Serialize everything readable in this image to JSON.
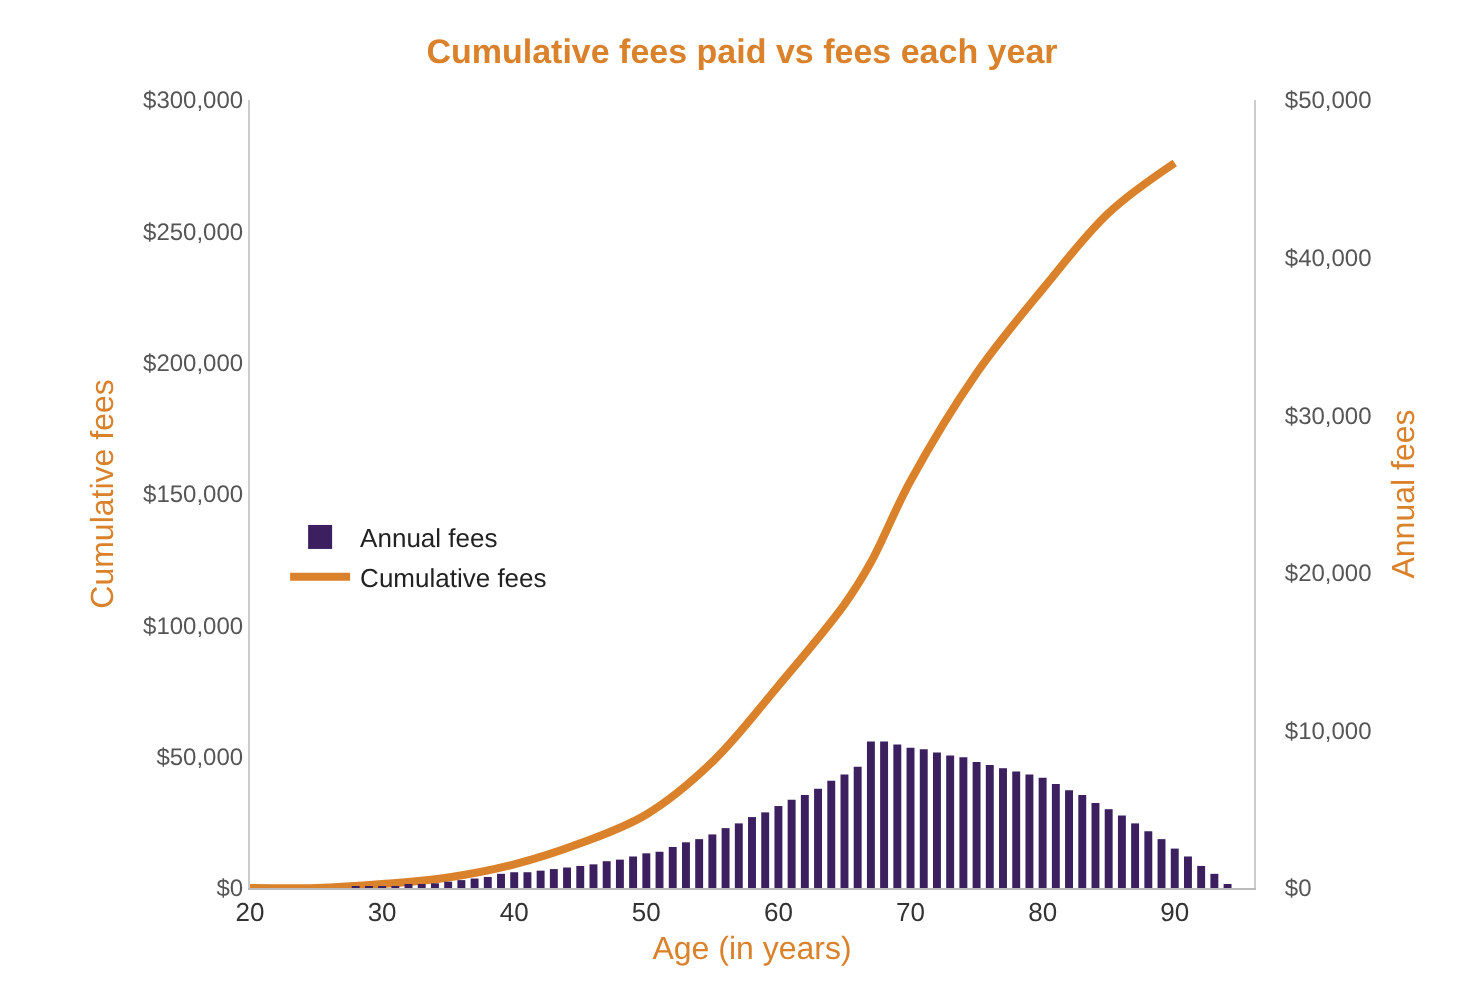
{
  "chart_data": {
    "type": "line",
    "title": "Cumulative fees paid vs fees each year",
    "xlabel": "Age (in years)",
    "ylabel": "Cumulative fees",
    "y2label": "Annual fees",
    "series": [
      {
        "name": "Annual fees",
        "type": "bar",
        "axis": "y2",
        "color": "#3b1f5e",
        "x": [
          28,
          29,
          30,
          31,
          32,
          33,
          34,
          35,
          36,
          37,
          38,
          39,
          40,
          41,
          42,
          43,
          44,
          45,
          46,
          47,
          48,
          49,
          50,
          51,
          52,
          53,
          54,
          55,
          56,
          57,
          58,
          59,
          60,
          61,
          62,
          63,
          64,
          65,
          66,
          67,
          68,
          69,
          70,
          71,
          72,
          73,
          74,
          75,
          76,
          77,
          78,
          79,
          80,
          81,
          82,
          83,
          84,
          85,
          86,
          87,
          88,
          89,
          90,
          91,
          92,
          93,
          94
        ],
        "values": [
          100,
          100,
          100,
          100,
          200,
          200,
          300,
          400,
          500,
          600,
          700,
          900,
          1000,
          1000,
          1100,
          1200,
          1300,
          1400,
          1500,
          1700,
          1800,
          2000,
          2200,
          2300,
          2600,
          2900,
          3100,
          3400,
          3800,
          4100,
          4500,
          4800,
          5200,
          5600,
          5900,
          6300,
          6800,
          7200,
          7700,
          9300,
          9300,
          9100,
          8900,
          8800,
          8600,
          8400,
          8300,
          8000,
          7800,
          7600,
          7400,
          7200,
          7000,
          6600,
          6200,
          5900,
          5400,
          5000,
          4600,
          4100,
          3600,
          3100,
          2500,
          2000,
          1400,
          900,
          200
        ]
      },
      {
        "name": "Cumulative fees",
        "color": "#d9822b",
        "x": [
          20,
          25,
          30,
          35,
          40,
          45,
          50,
          55,
          60,
          65,
          67,
          70,
          75,
          80,
          85,
          90
        ],
        "values": [
          0,
          0,
          1500,
          4000,
          9000,
          17000,
          28000,
          48000,
          77000,
          108000,
          124000,
          155000,
          196000,
          228000,
          257000,
          276000
        ]
      }
    ],
    "xlim": [
      20,
      96
    ],
    "xticks": [
      20,
      30,
      40,
      50,
      60,
      70,
      80,
      90
    ],
    "ylim": [
      0,
      300000
    ],
    "yticks": [
      {
        "value": 0,
        "label": "$0"
      },
      {
        "value": 50000,
        "label": "$50,000"
      },
      {
        "value": 100000,
        "label": "$100,000"
      },
      {
        "value": 150000,
        "label": "$150,000"
      },
      {
        "value": 200000,
        "label": "$200,000"
      },
      {
        "value": 250000,
        "label": "$250,000"
      },
      {
        "value": 300000,
        "label": "$300,000"
      }
    ],
    "y2lim": [
      0,
      50000
    ],
    "y2ticks": [
      {
        "value": 0,
        "label": "$0"
      },
      {
        "value": 10000,
        "label": "$10,000"
      },
      {
        "value": 20000,
        "label": "$20,000"
      },
      {
        "value": 30000,
        "label": "$30,000"
      },
      {
        "value": 40000,
        "label": "$40,000"
      },
      {
        "value": 50000,
        "label": "$50,000"
      }
    ],
    "legend": "left",
    "marker": "none",
    "line_style": "solid"
  }
}
